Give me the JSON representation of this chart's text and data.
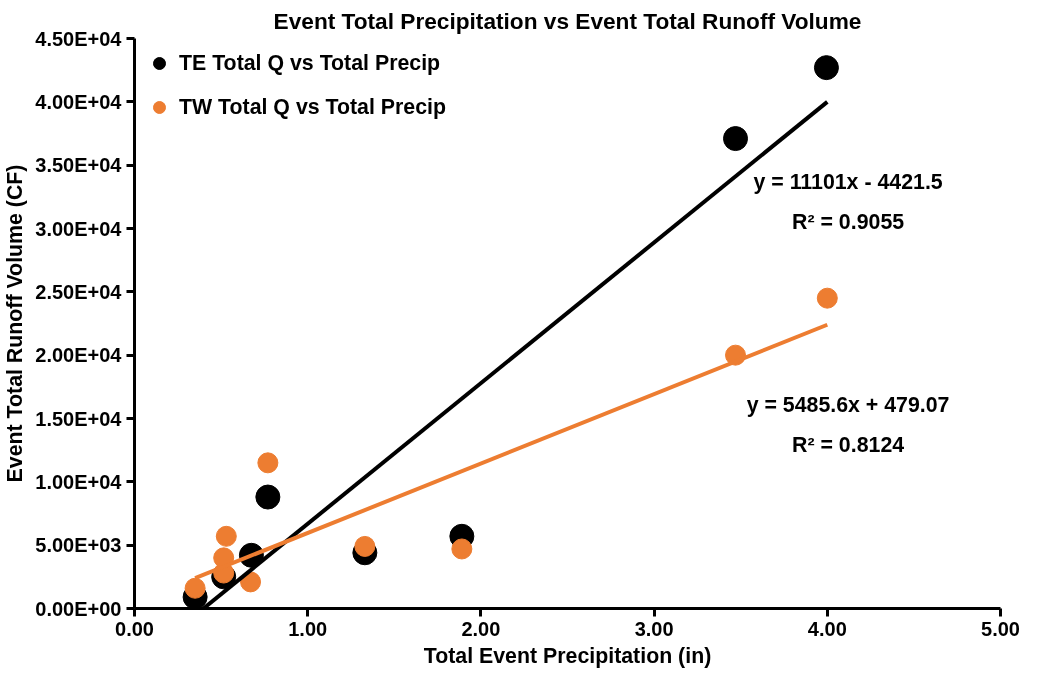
{
  "chart_data": {
    "type": "scatter",
    "title": "Event Total Precipitation vs Event Total Runoff Volume",
    "xlabel": "Total Event Precipitation (in)",
    "ylabel": "Event Total Runoff Volume (CF)",
    "xlim": [
      0,
      5
    ],
    "ylim": [
      0,
      45000
    ],
    "xticks": [
      {
        "value": 0,
        "label": "0.00"
      },
      {
        "value": 1,
        "label": "1.00"
      },
      {
        "value": 2,
        "label": "2.00"
      },
      {
        "value": 3,
        "label": "3.00"
      },
      {
        "value": 4,
        "label": "4.00"
      },
      {
        "value": 5,
        "label": "5.00"
      }
    ],
    "yticks": [
      {
        "value": 0,
        "label": "0.00E+00"
      },
      {
        "value": 5000,
        "label": "5.00E+03"
      },
      {
        "value": 10000,
        "label": "1.00E+04"
      },
      {
        "value": 15000,
        "label": "1.50E+04"
      },
      {
        "value": 20000,
        "label": "2.00E+04"
      },
      {
        "value": 25000,
        "label": "2.50E+04"
      },
      {
        "value": 30000,
        "label": "3.00E+04"
      },
      {
        "value": 35000,
        "label": "3.50E+04"
      },
      {
        "value": 40000,
        "label": "4.00E+04"
      },
      {
        "value": 45000,
        "label": "4.50E+04"
      }
    ],
    "series": [
      {
        "name": "TE Total Q vs Total Precip",
        "color": "#000000",
        "marker": "circle",
        "x": [
          0.35,
          0.515,
          0.675,
          0.77,
          1.33,
          1.89,
          3.47,
          3.995
        ],
        "values": [
          900,
          2500,
          4200,
          8800,
          4400,
          5700,
          37100,
          42700
        ]
      },
      {
        "name": "TW Total Q vs Total Precip",
        "color": "#ed7d31",
        "marker": "circle",
        "x": [
          0.35,
          0.515,
          0.515,
          0.53,
          0.67,
          0.77,
          1.33,
          1.89,
          3.47,
          4.0
        ],
        "values": [
          1600,
          2800,
          4000,
          5700,
          2100,
          11500,
          4900,
          4700,
          20000,
          24500
        ]
      },
      {
        "type": "line",
        "color": "#000000",
        "x": [
          0.398,
          4.0
        ],
        "values": [
          0,
          40000
        ]
      },
      {
        "type": "line",
        "color": "#ed7d31",
        "x": [
          0.35,
          4.0
        ],
        "values": [
          2400,
          22400
        ]
      }
    ],
    "annotations": [
      "y = 11101x - 4421.5",
      "R² = 0.9055",
      "y = 5485.6x + 479.07",
      "R² = 0.8124"
    ],
    "legend": "top left",
    "grid": false
  }
}
